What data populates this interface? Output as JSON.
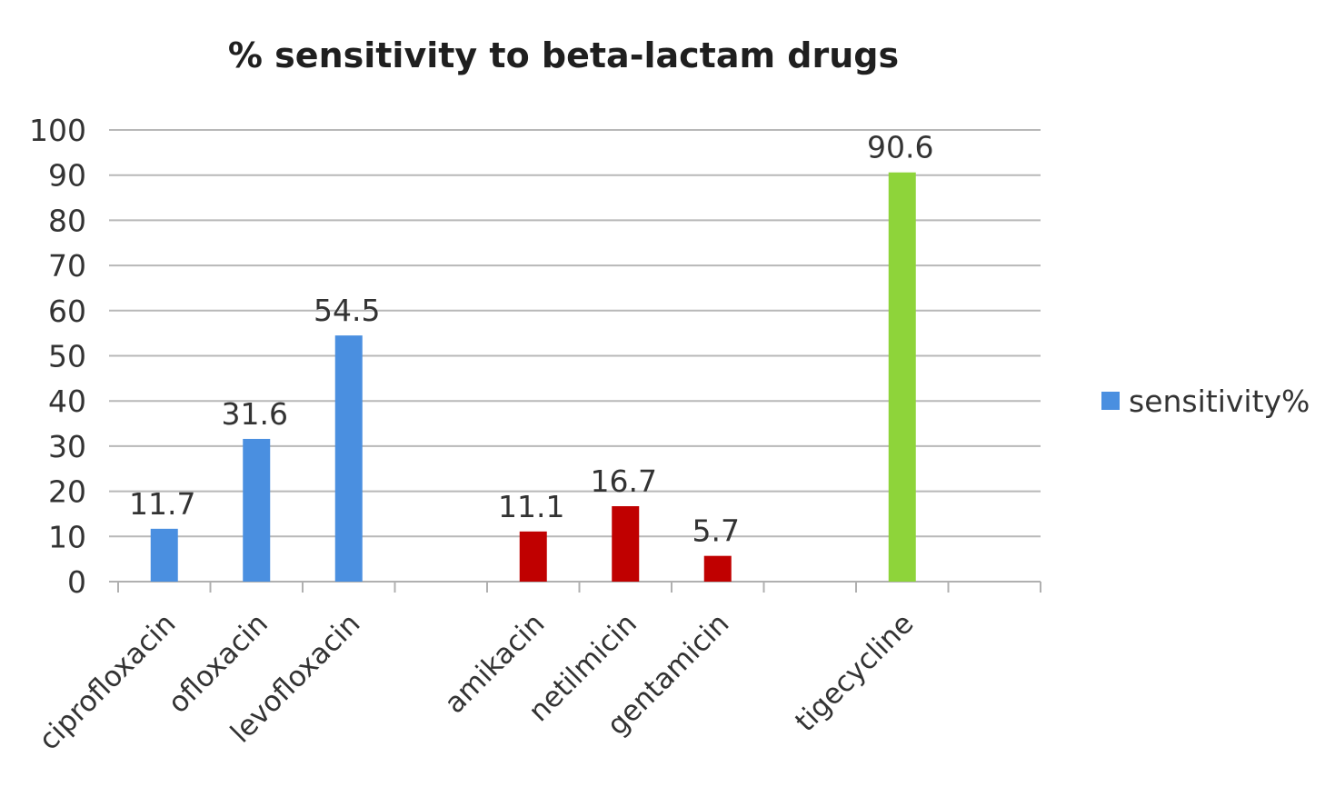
{
  "chart_data": {
    "type": "bar",
    "title": "% sensitivity to beta-lactam drugs",
    "xlabel": "",
    "ylabel": "",
    "ylim": [
      0,
      100
    ],
    "yticks": [
      0,
      10,
      20,
      30,
      40,
      50,
      60,
      70,
      80,
      90,
      100
    ],
    "grid": true,
    "legend": {
      "position": "right",
      "entries": [
        {
          "name": "sensitivity%",
          "color": "#4a8fe0"
        }
      ]
    },
    "categories": [
      "ciprofloxacin",
      "ofloxacin",
      "levofloxacin",
      "",
      "amikacin",
      "netilmicin",
      "gentamicin",
      "",
      "tigecycline",
      ""
    ],
    "series": [
      {
        "name": "sensitivity%",
        "values": [
          11.7,
          31.6,
          54.5,
          null,
          11.1,
          16.7,
          5.7,
          null,
          90.6,
          null
        ],
        "labels": [
          "11.7",
          "31.6",
          "54.5",
          "",
          "11.1",
          "16.7",
          "5.7",
          "",
          "90.6",
          ""
        ],
        "colors": [
          "#4a8fe0",
          "#4a8fe0",
          "#4a8fe0",
          "",
          "#c00000",
          "#c00000",
          "#c00000",
          "",
          "#8ed43a",
          ""
        ]
      }
    ]
  }
}
